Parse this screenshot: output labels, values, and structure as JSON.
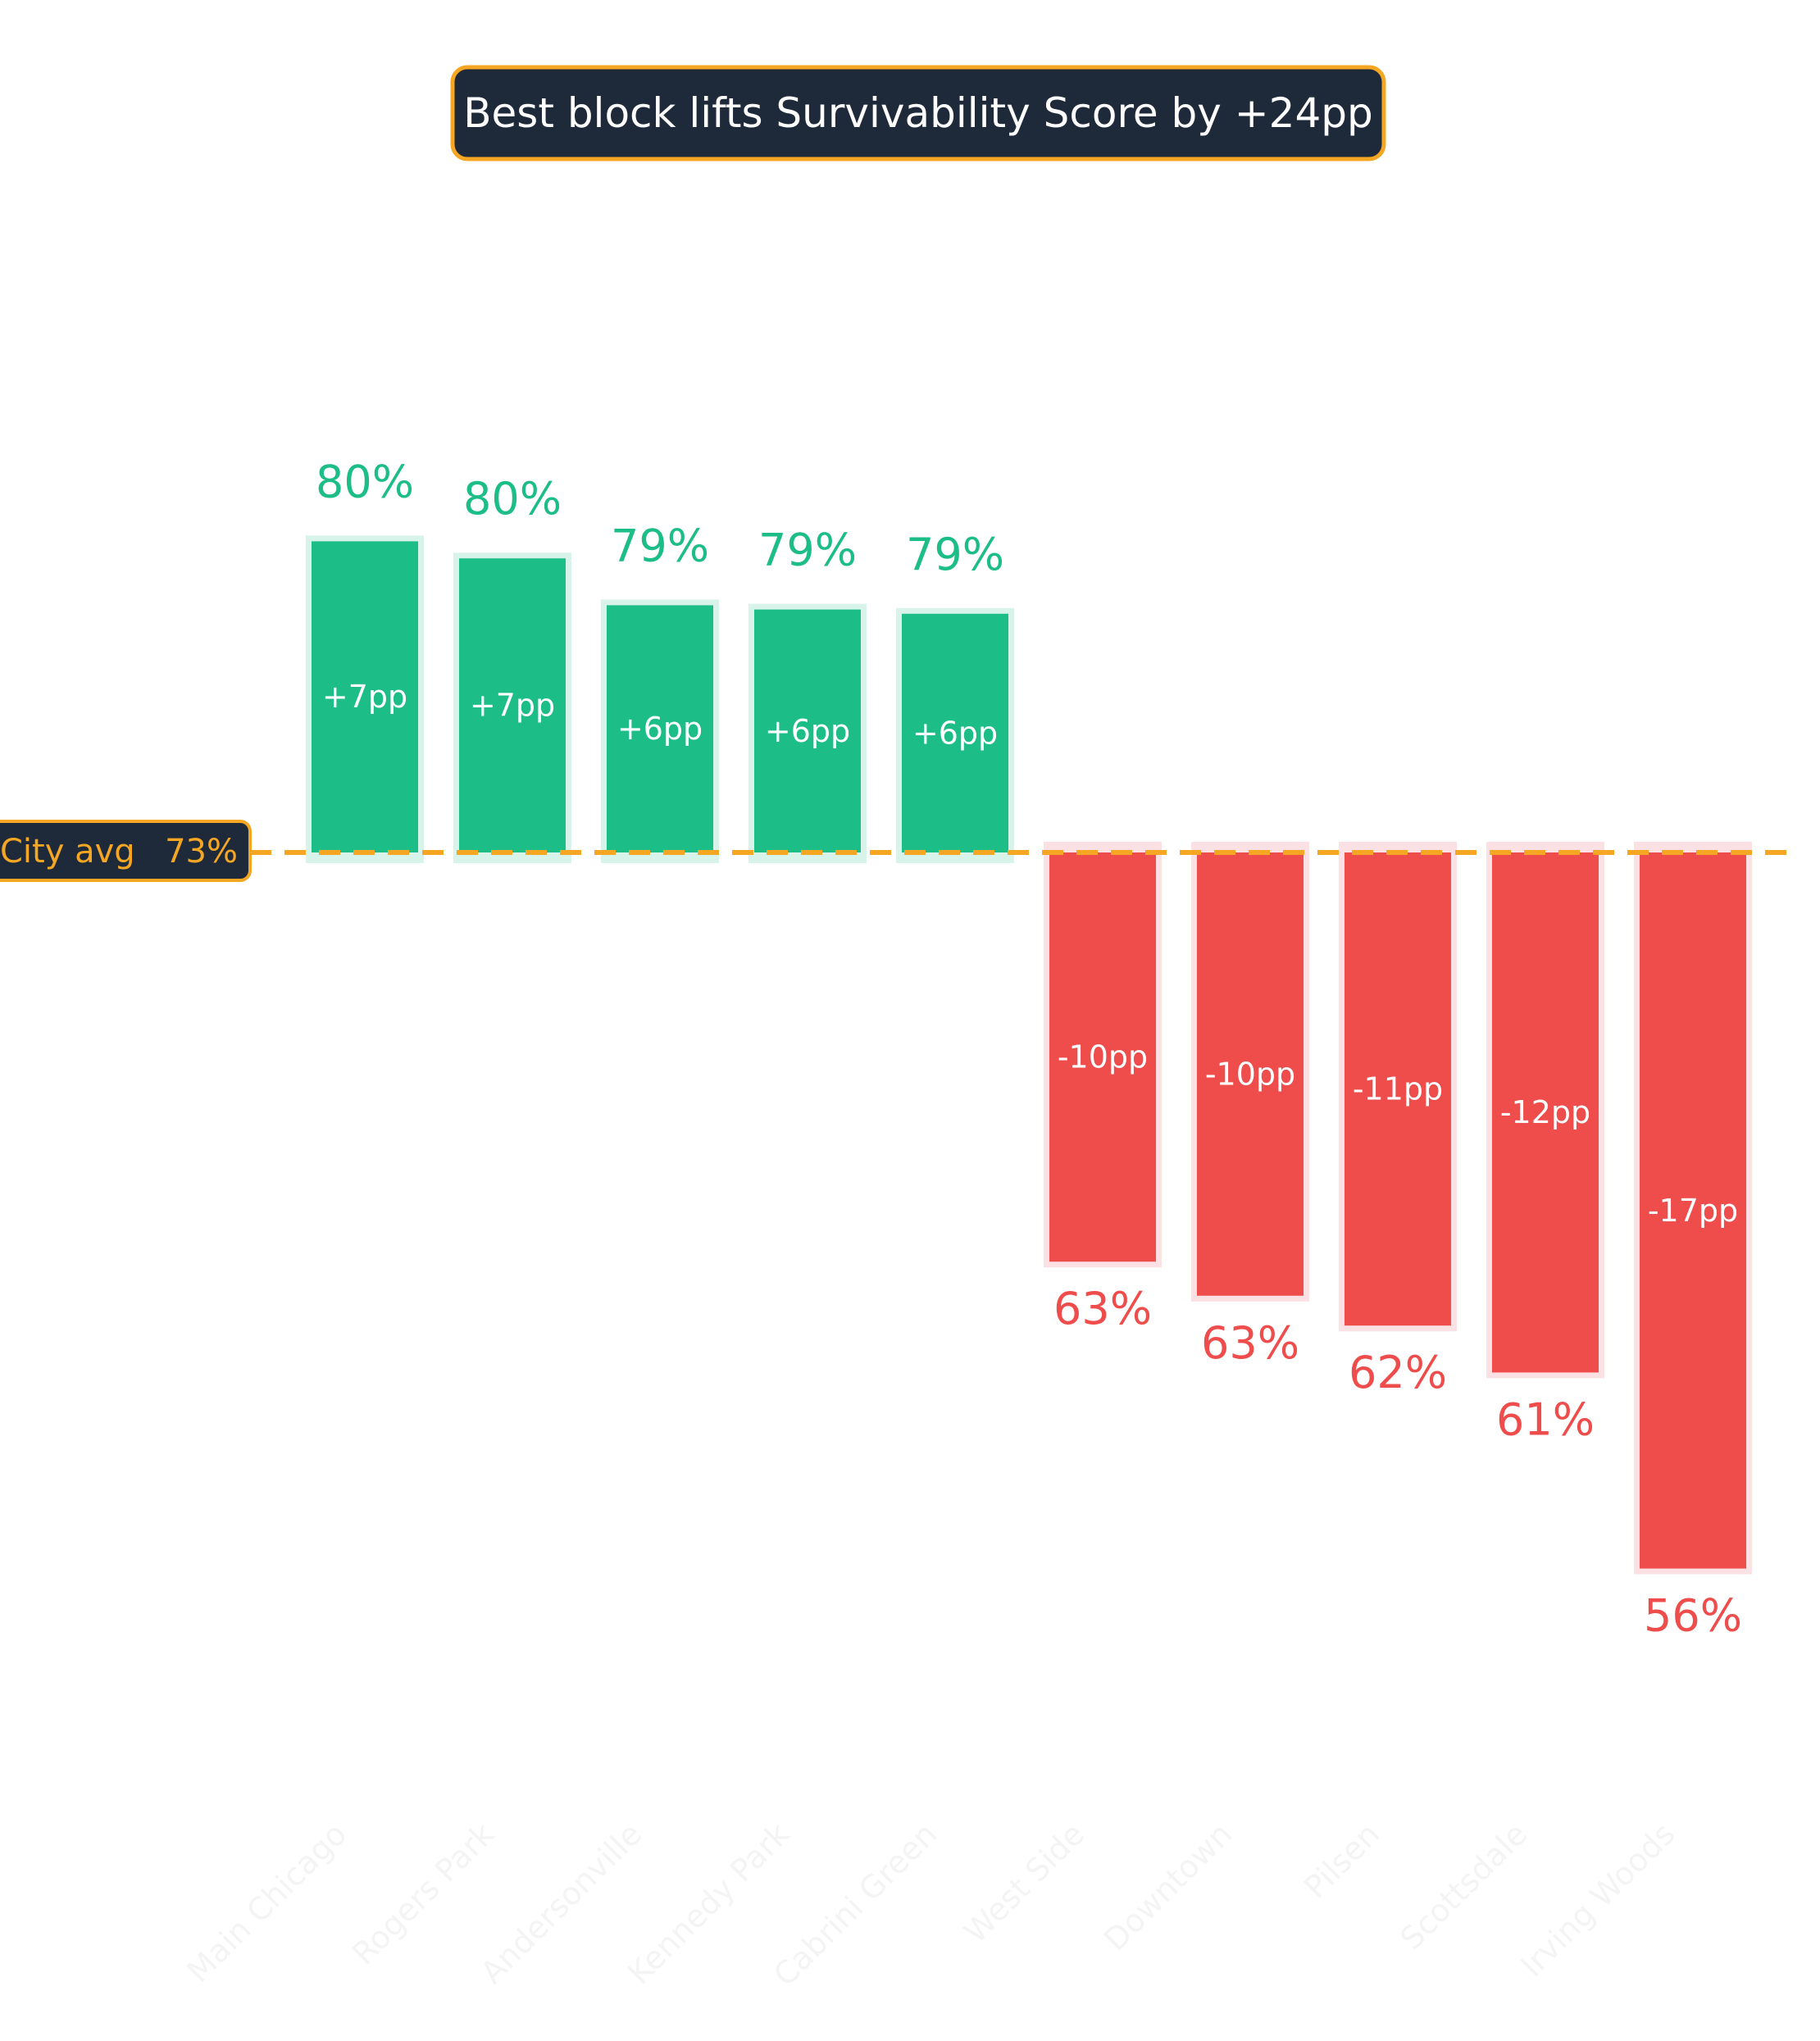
{
  "chart_data": {
    "type": "bar",
    "title": "Best block lifts Survivability Score by +24pp",
    "reference_line": {
      "label": "City avg",
      "value_label": "73%",
      "value": 73
    },
    "categories": [
      "Main Chicago",
      "Rogers Park",
      "Andersonville",
      "Kennedy Park",
      "Cabrini Green",
      "West Side",
      "Downtown",
      "Pilsen",
      "Scottsdale",
      "Irving Woods"
    ],
    "values": [
      80.3,
      79.9,
      78.8,
      78.7,
      78.6,
      63.4,
      62.6,
      61.9,
      60.8,
      56.2
    ],
    "value_labels": [
      "80%",
      "80%",
      "79%",
      "79%",
      "79%",
      "63%",
      "63%",
      "62%",
      "61%",
      "56%"
    ],
    "diff_labels": [
      "+7pp",
      "+7pp",
      "+6pp",
      "+6pp",
      "+6pp",
      "-10pp",
      "-10pp",
      "-11pp",
      "-12pp",
      "-17pp"
    ],
    "ylim": [
      50,
      85
    ],
    "grid": false,
    "colors": {
      "positive": "#1dbd87",
      "positive_halo": "#d8f4ea",
      "negative": "#ef4c4c",
      "negative_halo": "#fbe1e3",
      "reference": "#f5a623",
      "badge_bg": "#1e2a3a",
      "badge_border": "#f5a623",
      "category_text": "#f4f4f4"
    }
  }
}
